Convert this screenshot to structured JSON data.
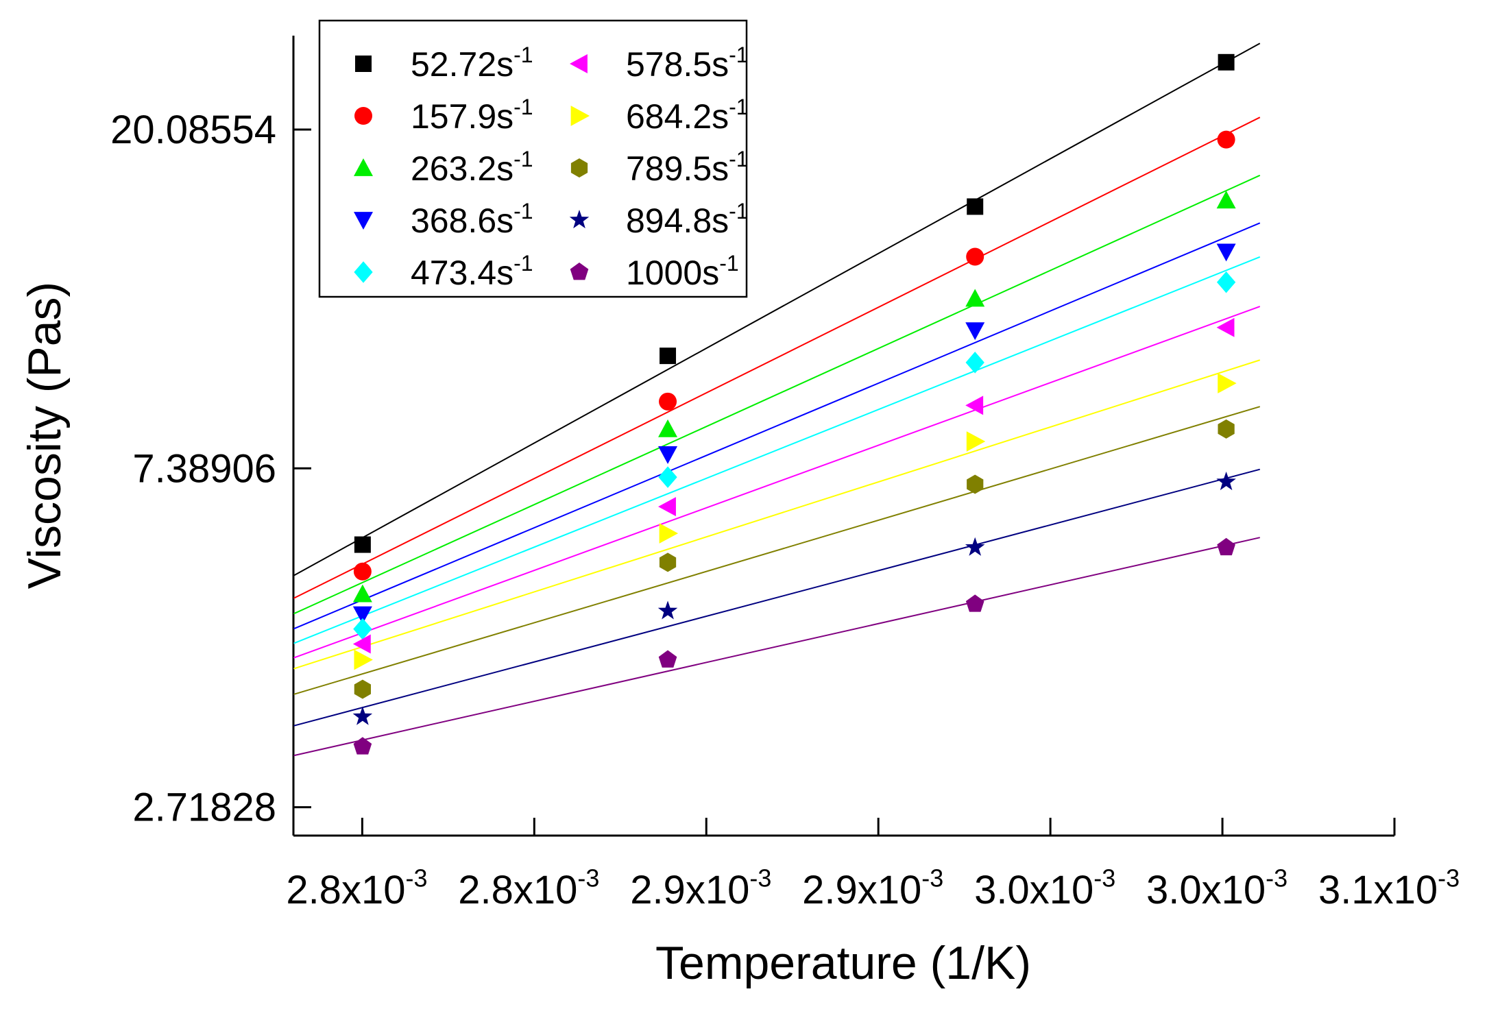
{
  "chart_data": {
    "type": "scatter",
    "title": "",
    "xlabel": "Temperature (1/K)",
    "ylabel": "Viscosity (Pas)",
    "xlim": [
      0.00275,
      0.00307
    ],
    "ylog": true,
    "ylim": [
      2.5,
      26.5
    ],
    "x_ticks": [
      {
        "value": 0.00277,
        "mantissa": "2.8x10",
        "exp": "-3"
      },
      {
        "value": 0.00282,
        "mantissa": "2.8x10",
        "exp": "-3"
      },
      {
        "value": 0.00287,
        "mantissa": "2.9x10",
        "exp": "-3"
      },
      {
        "value": 0.00292,
        "mantissa": "2.9x10",
        "exp": "-3"
      },
      {
        "value": 0.00297,
        "mantissa": "3.0x10",
        "exp": "-3"
      },
      {
        "value": 0.00302,
        "mantissa": "3.0x10",
        "exp": "-3"
      },
      {
        "value": 0.00307,
        "mantissa": "3.1x10",
        "exp": "-3"
      }
    ],
    "y_ticks": [
      {
        "value": 2.71828,
        "label": "2.71828"
      },
      {
        "value": 7.38906,
        "label": "7.38906"
      },
      {
        "value": 20.08554,
        "label": "20.08554"
      }
    ],
    "x": [
      0.0027701,
      0.0028588,
      0.0029481,
      0.0030211
    ],
    "fit_x_range": [
      0.0027501,
      0.0030309
    ],
    "series": [
      {
        "name": "52.72",
        "unit": "s",
        "exp": "-1",
        "color": "#000000",
        "marker": "square",
        "values": [
          5.9,
          10.3,
          16.0,
          24.5
        ]
      },
      {
        "name": "157.9",
        "unit": "s",
        "exp": "-1",
        "color": "#ff0000",
        "marker": "circle",
        "values": [
          5.45,
          9.0,
          13.8,
          19.5
        ]
      },
      {
        "name": "263.2",
        "unit": "s",
        "exp": "-1",
        "color": "#00ee00",
        "marker": "triangle-up",
        "values": [
          5.1,
          8.3,
          12.2,
          16.3
        ]
      },
      {
        "name": "368.6",
        "unit": "s",
        "exp": "-1",
        "color": "#0000ff",
        "marker": "triangle-down",
        "values": [
          4.8,
          7.7,
          11.1,
          14.0
        ]
      },
      {
        "name": "473.4",
        "unit": "s",
        "exp": "-1",
        "color": "#00ffff",
        "marker": "diamond",
        "values": [
          4.6,
          7.2,
          10.1,
          12.8
        ]
      },
      {
        "name": "578.5",
        "unit": "s",
        "exp": "-1",
        "color": "#ff00ff",
        "marker": "triangle-left",
        "values": [
          4.4,
          6.6,
          8.9,
          11.2
        ]
      },
      {
        "name": "684.2",
        "unit": "s",
        "exp": "-1",
        "color": "#ffff00",
        "marker": "triangle-right",
        "values": [
          4.2,
          6.1,
          8.0,
          9.5
        ]
      },
      {
        "name": "789.5",
        "unit": "s",
        "exp": "-1",
        "color": "#808000",
        "marker": "hexagon",
        "values": [
          3.85,
          5.6,
          7.05,
          8.3
        ]
      },
      {
        "name": "894.8",
        "unit": "s",
        "exp": "-1",
        "color": "#000080",
        "marker": "star",
        "values": [
          3.55,
          4.85,
          5.85,
          7.1
        ]
      },
      {
        "name": "1000",
        "unit": "s",
        "exp": "-1",
        "color": "#800080",
        "marker": "pentagon",
        "values": [
          3.25,
          4.2,
          4.95,
          5.85
        ]
      }
    ],
    "legend": {
      "position": "top-left",
      "columns": 2
    }
  }
}
